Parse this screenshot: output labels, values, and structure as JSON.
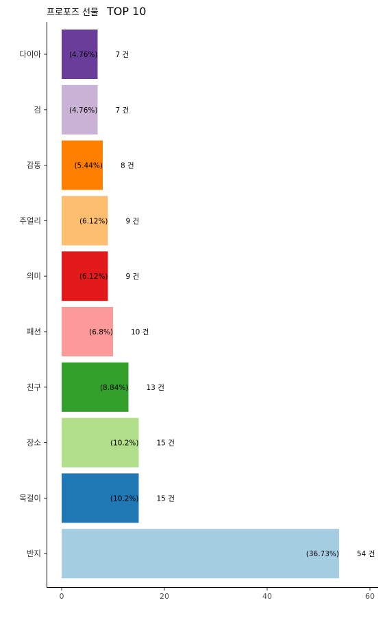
{
  "title": {
    "prefix": "프로포즈 선물",
    "suffix": "TOP 10"
  },
  "chart_data": {
    "type": "bar",
    "orientation": "horizontal",
    "title": "프로포즈 선물 TOP 10",
    "xlim": [
      0,
      60
    ],
    "x_ticks": [
      "0",
      "20",
      "40",
      "60"
    ],
    "x_tick_values": [
      0,
      20,
      40,
      60
    ],
    "count_suffix": " 건",
    "categories": [
      "다이아",
      "검",
      "감동",
      "주얼리",
      "의미",
      "패션",
      "친구",
      "장소",
      "목걸이",
      "반지"
    ],
    "values": [
      7,
      7,
      8,
      9,
      9,
      10,
      13,
      15,
      15,
      54
    ],
    "percent_labels": [
      "(4.76%)",
      "(4.76%)",
      "(5.44%)",
      "(6.12%)",
      "(6.12%)",
      "(6.8%)",
      "(8.84%)",
      "(10.2%)",
      "(10.2%)",
      "(36.73%)"
    ],
    "colors": [
      "#6A3D9A",
      "#CAB2D6",
      "#FF7F00",
      "#FDBF6F",
      "#E31A1C",
      "#FB9A99",
      "#33A02C",
      "#B2DF8A",
      "#1F78B4",
      "#A6CEE3"
    ],
    "grid": false,
    "legend": "none"
  }
}
